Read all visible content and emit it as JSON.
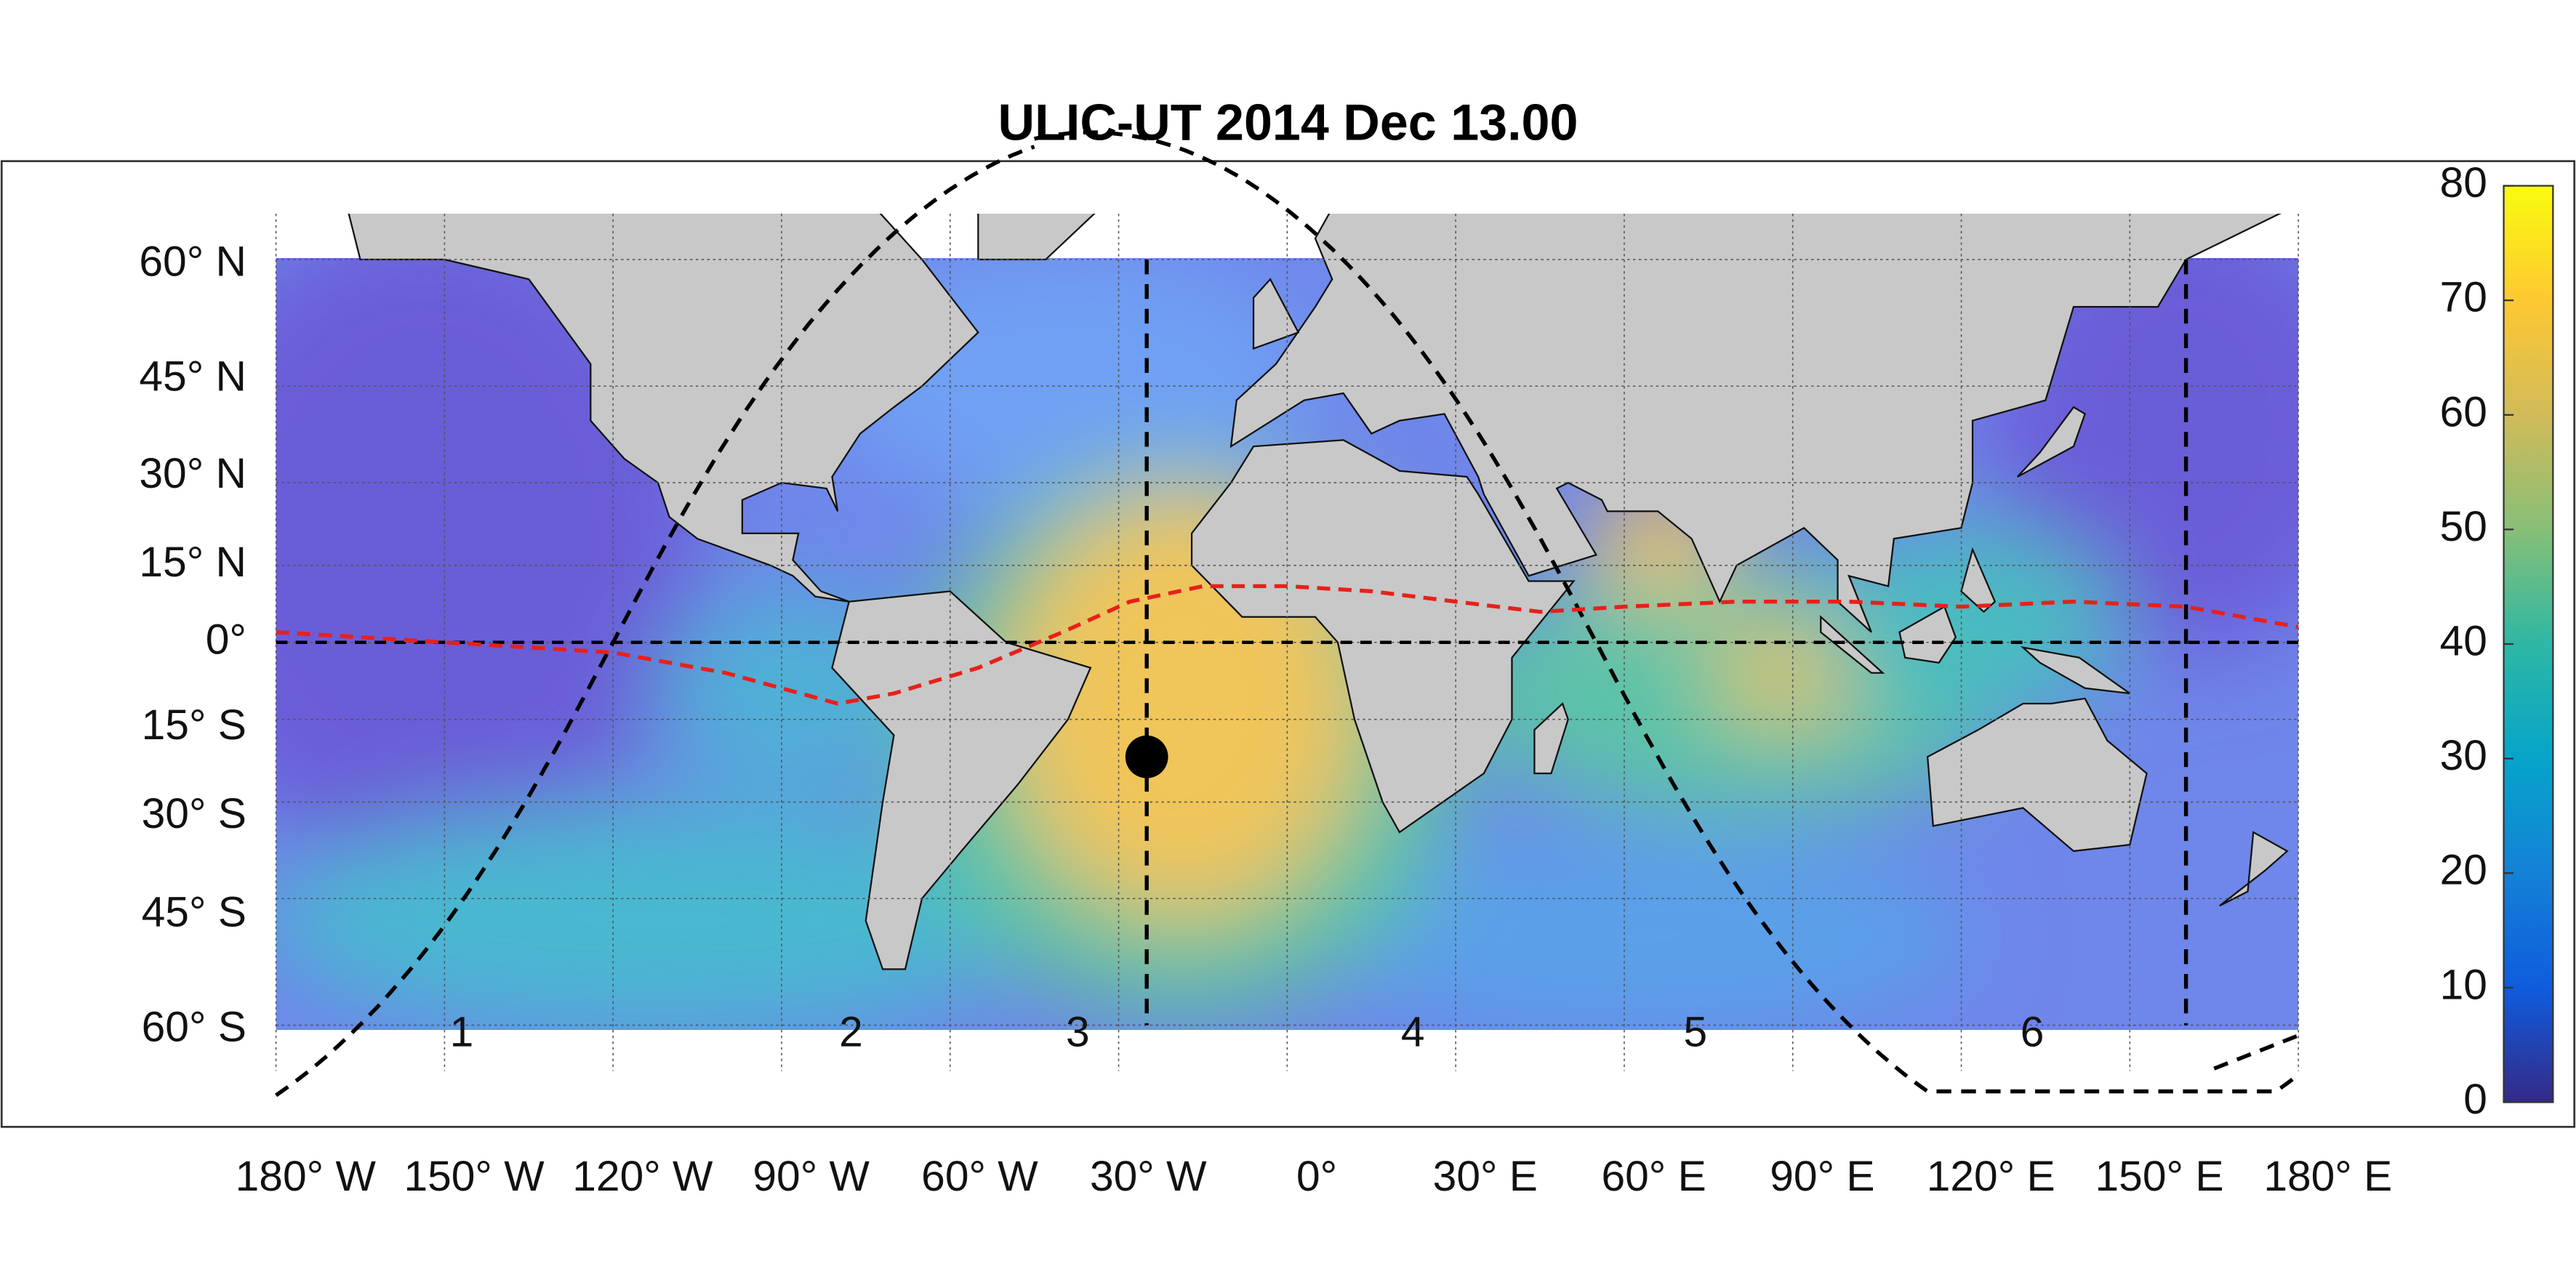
{
  "title": "ULIC-UT 2014 Dec 13.00",
  "lat_labels": [
    "60° N",
    "45° N",
    "30° N",
    "15° N",
    "0°",
    "15° S",
    "30° S",
    "45° S",
    "60° S"
  ],
  "lon_labels": [
    "180° W",
    "150° W",
    "120° W",
    "90° W",
    "60° W",
    "30° W",
    "0°",
    "30° E",
    "60° E",
    "90° E",
    "120° E",
    "150° E",
    "180° E"
  ],
  "region_labels": [
    "1",
    "2",
    "3",
    "4",
    "5",
    "6"
  ],
  "colorbar": {
    "lim": [
      0,
      80
    ],
    "ticks": [
      0,
      10,
      20,
      30,
      40,
      50,
      60,
      70,
      80
    ]
  }
}
